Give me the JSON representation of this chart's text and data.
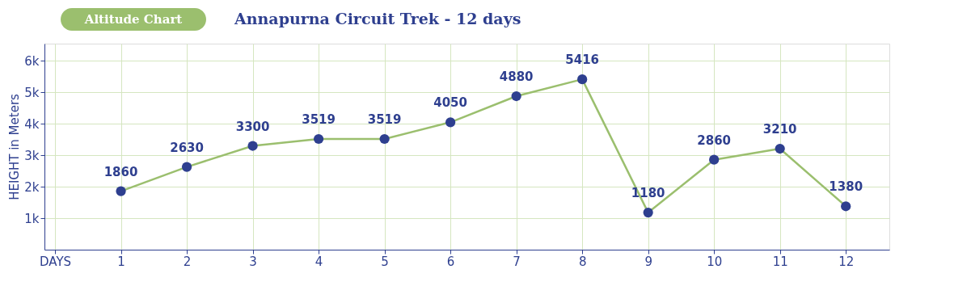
{
  "chart_data": {
    "type": "line",
    "title": "Annapurna Circuit Trek - 12 days",
    "ylabel": "HEIGHT in Meters",
    "annotations": [
      "Altitude Chart"
    ],
    "x": [
      1,
      2,
      3,
      4,
      5,
      6,
      7,
      8,
      9,
      10,
      11,
      12
    ],
    "series": [
      {
        "color": "#9bbf6e",
        "values": [
          1860,
          2630,
          3300,
          3519,
          3519,
          4050,
          4880,
          5416,
          1180,
          2860,
          3210,
          1380
        ]
      }
    ],
    "marker": "circle",
    "line_style": "solid",
    "data_labels": true,
    "grid": true,
    "legend": false,
    "xlim": [
      -0.16,
      12.66
    ],
    "xticks": [
      {
        "value": 0,
        "label": "DAYS"
      },
      1,
      2,
      3,
      4,
      5,
      6,
      7,
      8,
      9,
      10,
      11,
      12
    ],
    "ylim": [
      0,
      6550
    ],
    "yticks": [
      {
        "value": 1000,
        "label": "1k"
      },
      {
        "value": 2000,
        "label": "2k"
      },
      {
        "value": 3000,
        "label": "3k"
      },
      {
        "value": 4000,
        "label": "4k"
      },
      {
        "value": 5000,
        "label": "5k"
      },
      {
        "value": 6000,
        "label": "6k"
      }
    ]
  }
}
